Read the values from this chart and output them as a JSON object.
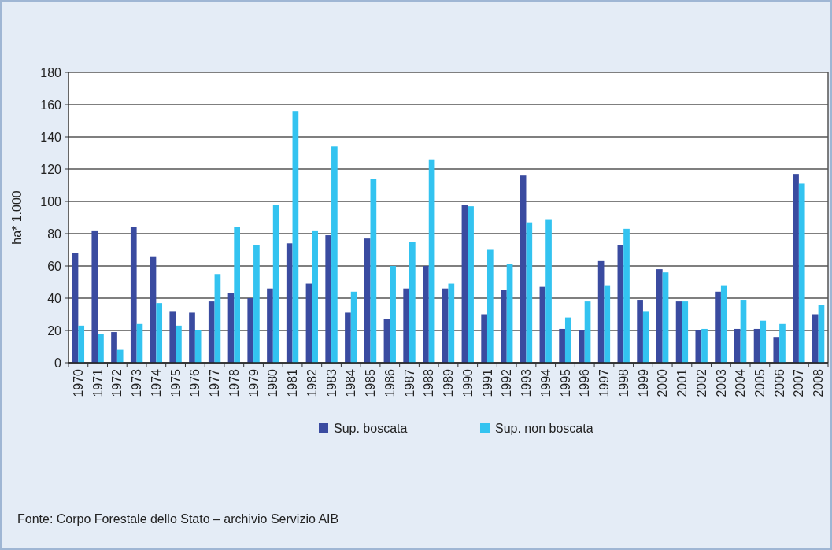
{
  "chart_data": {
    "type": "bar",
    "ylabel": "ha* 1.000",
    "categories": [
      "1970",
      "1971",
      "1972",
      "1973",
      "1974",
      "1975",
      "1976",
      "1977",
      "1978",
      "1979",
      "1980",
      "1981",
      "1982",
      "1983",
      "1984",
      "1985",
      "1986",
      "1987",
      "1988",
      "1989",
      "1990",
      "1991",
      "1992",
      "1993",
      "1994",
      "1995",
      "1996",
      "1997",
      "1998",
      "1999",
      "2000",
      "2001",
      "2002",
      "2003",
      "2004",
      "2005",
      "2006",
      "2007",
      "2008"
    ],
    "series": [
      {
        "name": "Sup. boscata",
        "color": "#3a4ba0",
        "values": [
          68,
          82,
          19,
          84,
          66,
          32,
          31,
          38,
          43,
          40,
          46,
          74,
          49,
          79,
          31,
          77,
          27,
          46,
          60,
          46,
          98,
          30,
          45,
          116,
          47,
          21,
          20,
          63,
          73,
          39,
          58,
          38,
          20,
          44,
          21,
          21,
          16,
          117,
          30
        ]
      },
      {
        "name": "Sup. non boscata",
        "color": "#33c3f0",
        "values": [
          23,
          18,
          8,
          24,
          37,
          23,
          20,
          55,
          84,
          73,
          98,
          156,
          82,
          134,
          44,
          114,
          60,
          75,
          126,
          49,
          97,
          70,
          61,
          87,
          89,
          28,
          38,
          48,
          83,
          32,
          56,
          38,
          21,
          48,
          39,
          26,
          24,
          111,
          36
        ]
      }
    ],
    "ylim": [
      0,
      180
    ],
    "yticks": [
      0,
      20,
      40,
      60,
      80,
      100,
      120,
      140,
      160,
      180
    ],
    "grid": "y",
    "legend": "bottom",
    "annotations": [
      "Fonte: Corpo Forestale dello Stato – archivio Servizio AIB"
    ]
  }
}
